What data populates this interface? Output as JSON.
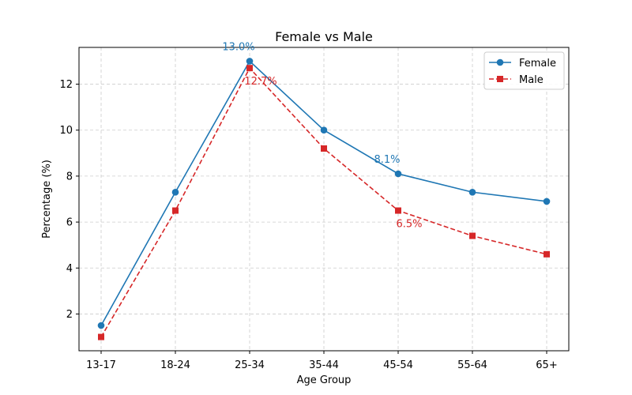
{
  "chart_data": {
    "type": "line",
    "title": "Female vs Male",
    "xlabel": "Age Group",
    "ylabel": "Percentage (%)",
    "categories": [
      "13-17",
      "18-24",
      "25-34",
      "35-44",
      "45-54",
      "55-64",
      "65+"
    ],
    "ylim": [
      0.4,
      13.6
    ],
    "yticks": [
      2,
      4,
      6,
      8,
      10,
      12
    ],
    "grid": true,
    "legend_position": "top-right",
    "series": [
      {
        "name": "Female",
        "color": "#1f77b4",
        "marker": "circle",
        "line_style": "solid",
        "values": [
          1.5,
          7.3,
          13.0,
          10.0,
          8.1,
          7.3,
          6.9
        ]
      },
      {
        "name": "Male",
        "color": "#d62728",
        "marker": "square",
        "line_style": "dashed",
        "values": [
          1.0,
          6.5,
          12.7,
          9.2,
          6.5,
          5.4,
          4.6
        ]
      }
    ],
    "annotations": [
      {
        "text": "13.0%",
        "series": "Female",
        "category": "25-34",
        "placement": "above-left"
      },
      {
        "text": "12.7%",
        "series": "Male",
        "category": "25-34",
        "placement": "below-right"
      },
      {
        "text": "8.1%",
        "series": "Female",
        "category": "45-54",
        "placement": "above-left"
      },
      {
        "text": "6.5%",
        "series": "Male",
        "category": "45-54",
        "placement": "below-right"
      }
    ]
  }
}
